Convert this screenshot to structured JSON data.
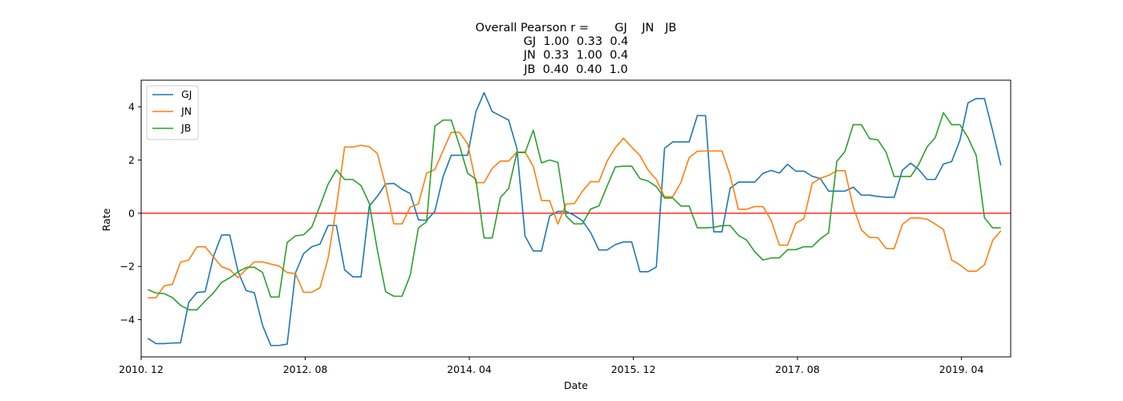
{
  "chart_data": {
    "type": "line",
    "title_lines": [
      "Overall Pearson r =       GJ    JN   JB",
      "GJ  1.00  0.33  0.4",
      "JN  0.33  1.00  0.4",
      "JB  0.40  0.40  1.0"
    ],
    "xlabel": "Date",
    "ylabel": "Rate",
    "x_tick_labels": [
      "2010. 12",
      "2012. 08",
      "2014. 04",
      "2015. 12",
      "2017. 08",
      "2019. 04"
    ],
    "x_tick_months": [
      0,
      20,
      40,
      60,
      80,
      100
    ],
    "x_range_months": [
      0,
      106
    ],
    "ylim": [
      -5.4,
      5.0
    ],
    "y_ticks": [
      -4,
      -2,
      0,
      2,
      4
    ],
    "hline": {
      "value": 0,
      "color": "#ff0000"
    },
    "legend_position": "upper-left",
    "x_months": [
      0.8,
      1.8,
      2.8,
      3.8,
      4.8,
      5.8,
      6.8,
      7.8,
      8.8,
      9.8,
      10.8,
      11.8,
      12.8,
      13.8,
      14.8,
      15.8,
      16.8,
      17.8,
      18.8,
      19.8,
      20.8,
      21.8,
      22.8,
      23.8,
      24.8,
      25.8,
      26.8,
      27.8,
      28.8,
      29.8,
      30.8,
      31.8,
      32.8,
      33.8,
      34.8,
      35.8,
      36.8,
      37.8,
      38.8,
      39.8,
      40.8,
      41.8,
      42.8,
      43.8,
      44.8,
      45.8,
      46.8,
      47.8,
      48.8,
      49.8,
      50.8,
      51.8,
      52.8,
      53.8,
      54.8,
      55.8,
      56.8,
      57.8,
      58.8,
      59.8,
      60.8,
      61.8,
      62.8,
      63.8,
      64.8,
      65.8,
      66.8,
      67.8,
      68.8,
      69.8,
      70.8,
      71.8,
      72.8,
      73.8,
      74.8,
      75.8,
      76.8,
      77.8,
      78.8,
      79.8,
      80.8,
      81.8,
      82.8,
      83.8,
      84.8,
      85.8,
      86.8,
      87.8,
      88.8,
      89.8,
      90.8,
      91.8,
      92.8,
      93.8,
      94.8,
      95.8,
      96.8,
      97.8,
      98.8,
      99.8,
      100.8,
      101.8,
      102.8,
      103.8,
      104.8,
      105.8
    ],
    "series": [
      {
        "name": "GJ",
        "color": "#1f77b4",
        "values": [
          -4.7,
          -4.9,
          -4.9,
          -4.88,
          -4.87,
          -3.35,
          -2.98,
          -2.95,
          -1.64,
          -0.82,
          -0.82,
          -2.18,
          -2.91,
          -2.99,
          -4.22,
          -4.97,
          -4.97,
          -4.92,
          -2.25,
          -1.52,
          -1.26,
          -1.16,
          -0.46,
          -0.46,
          -2.13,
          -2.39,
          -2.39,
          0.26,
          0.64,
          1.1,
          1.12,
          0.9,
          0.74,
          -0.25,
          -0.27,
          0.07,
          1.37,
          2.18,
          2.18,
          2.18,
          3.81,
          4.53,
          3.82,
          3.66,
          3.5,
          2.44,
          -0.86,
          -1.42,
          -1.42,
          -0.1,
          0.07,
          0.07,
          -0.08,
          -0.28,
          -0.73,
          -1.38,
          -1.38,
          -1.18,
          -1.08,
          -1.08,
          -2.2,
          -2.2,
          -2.02,
          2.44,
          2.68,
          2.68,
          2.68,
          3.67,
          3.67,
          -0.7,
          -0.7,
          0.94,
          1.17,
          1.17,
          1.17,
          1.5,
          1.61,
          1.51,
          1.84,
          1.58,
          1.58,
          1.39,
          1.3,
          0.83,
          0.83,
          0.83,
          0.98,
          0.68,
          0.68,
          0.63,
          0.6,
          0.6,
          1.62,
          1.88,
          1.64,
          1.27,
          1.27,
          1.85,
          1.94,
          2.73,
          4.15,
          4.31,
          4.31,
          3.1,
          1.8
        ]
      },
      {
        "name": "JN",
        "color": "#ff7f0e",
        "values": [
          -3.18,
          -3.18,
          -2.73,
          -2.67,
          -1.84,
          -1.76,
          -1.26,
          -1.26,
          -1.64,
          -2.01,
          -2.12,
          -2.42,
          -2.11,
          -1.83,
          -1.83,
          -1.91,
          -1.98,
          -2.23,
          -2.27,
          -2.97,
          -2.97,
          -2.8,
          -1.68,
          0.24,
          2.49,
          2.49,
          2.55,
          2.5,
          2.24,
          1.03,
          -0.4,
          -0.4,
          0.23,
          0.35,
          1.51,
          1.64,
          2.35,
          3.04,
          3.04,
          2.61,
          1.15,
          1.15,
          1.69,
          1.96,
          1.96,
          2.3,
          2.3,
          1.76,
          0.48,
          0.47,
          -0.41,
          0.35,
          0.36,
          0.83,
          1.19,
          1.18,
          1.96,
          2.46,
          2.82,
          2.48,
          2.17,
          1.62,
          1.27,
          0.62,
          0.62,
          1.16,
          2.09,
          2.33,
          2.34,
          2.34,
          2.34,
          1.42,
          0.15,
          0.15,
          0.25,
          0.25,
          -0.27,
          -1.2,
          -1.2,
          -0.38,
          -0.2,
          1.12,
          1.32,
          1.42,
          1.6,
          1.6,
          0.24,
          -0.63,
          -0.91,
          -0.92,
          -1.32,
          -1.33,
          -0.42,
          -0.18,
          -0.18,
          -0.22,
          -0.41,
          -0.61,
          -1.76,
          -1.94,
          -2.18,
          -2.18,
          -1.94,
          -1.02,
          -0.66
        ]
      },
      {
        "name": "JB",
        "color": "#2ca02c",
        "values": [
          -2.87,
          -3.0,
          -3.02,
          -3.17,
          -3.46,
          -3.63,
          -3.63,
          -3.3,
          -3.0,
          -2.6,
          -2.43,
          -2.2,
          -2.04,
          -2.03,
          -2.23,
          -3.15,
          -3.15,
          -1.1,
          -0.85,
          -0.81,
          -0.52,
          0.28,
          1.1,
          1.63,
          1.27,
          1.27,
          1.04,
          0.38,
          -1.4,
          -2.95,
          -3.12,
          -3.12,
          -2.33,
          -0.55,
          -0.32,
          3.27,
          3.5,
          3.5,
          2.55,
          1.5,
          1.28,
          -0.93,
          -0.93,
          0.59,
          0.93,
          2.28,
          2.28,
          3.12,
          1.89,
          2.0,
          1.91,
          -0.11,
          -0.4,
          -0.4,
          0.16,
          0.27,
          1.02,
          1.74,
          1.77,
          1.77,
          1.3,
          1.21,
          1.0,
          0.57,
          0.57,
          0.27,
          0.27,
          -0.55,
          -0.55,
          -0.53,
          -0.47,
          -0.46,
          -0.83,
          -1.01,
          -1.45,
          -1.76,
          -1.68,
          -1.68,
          -1.37,
          -1.37,
          -1.26,
          -1.26,
          -0.96,
          -0.74,
          1.95,
          2.32,
          3.33,
          3.33,
          2.8,
          2.76,
          2.3,
          1.38,
          1.38,
          1.38,
          1.84,
          2.49,
          2.84,
          3.78,
          3.33,
          3.33,
          2.84,
          2.17,
          -0.17,
          -0.55,
          -0.55
        ]
      }
    ]
  }
}
